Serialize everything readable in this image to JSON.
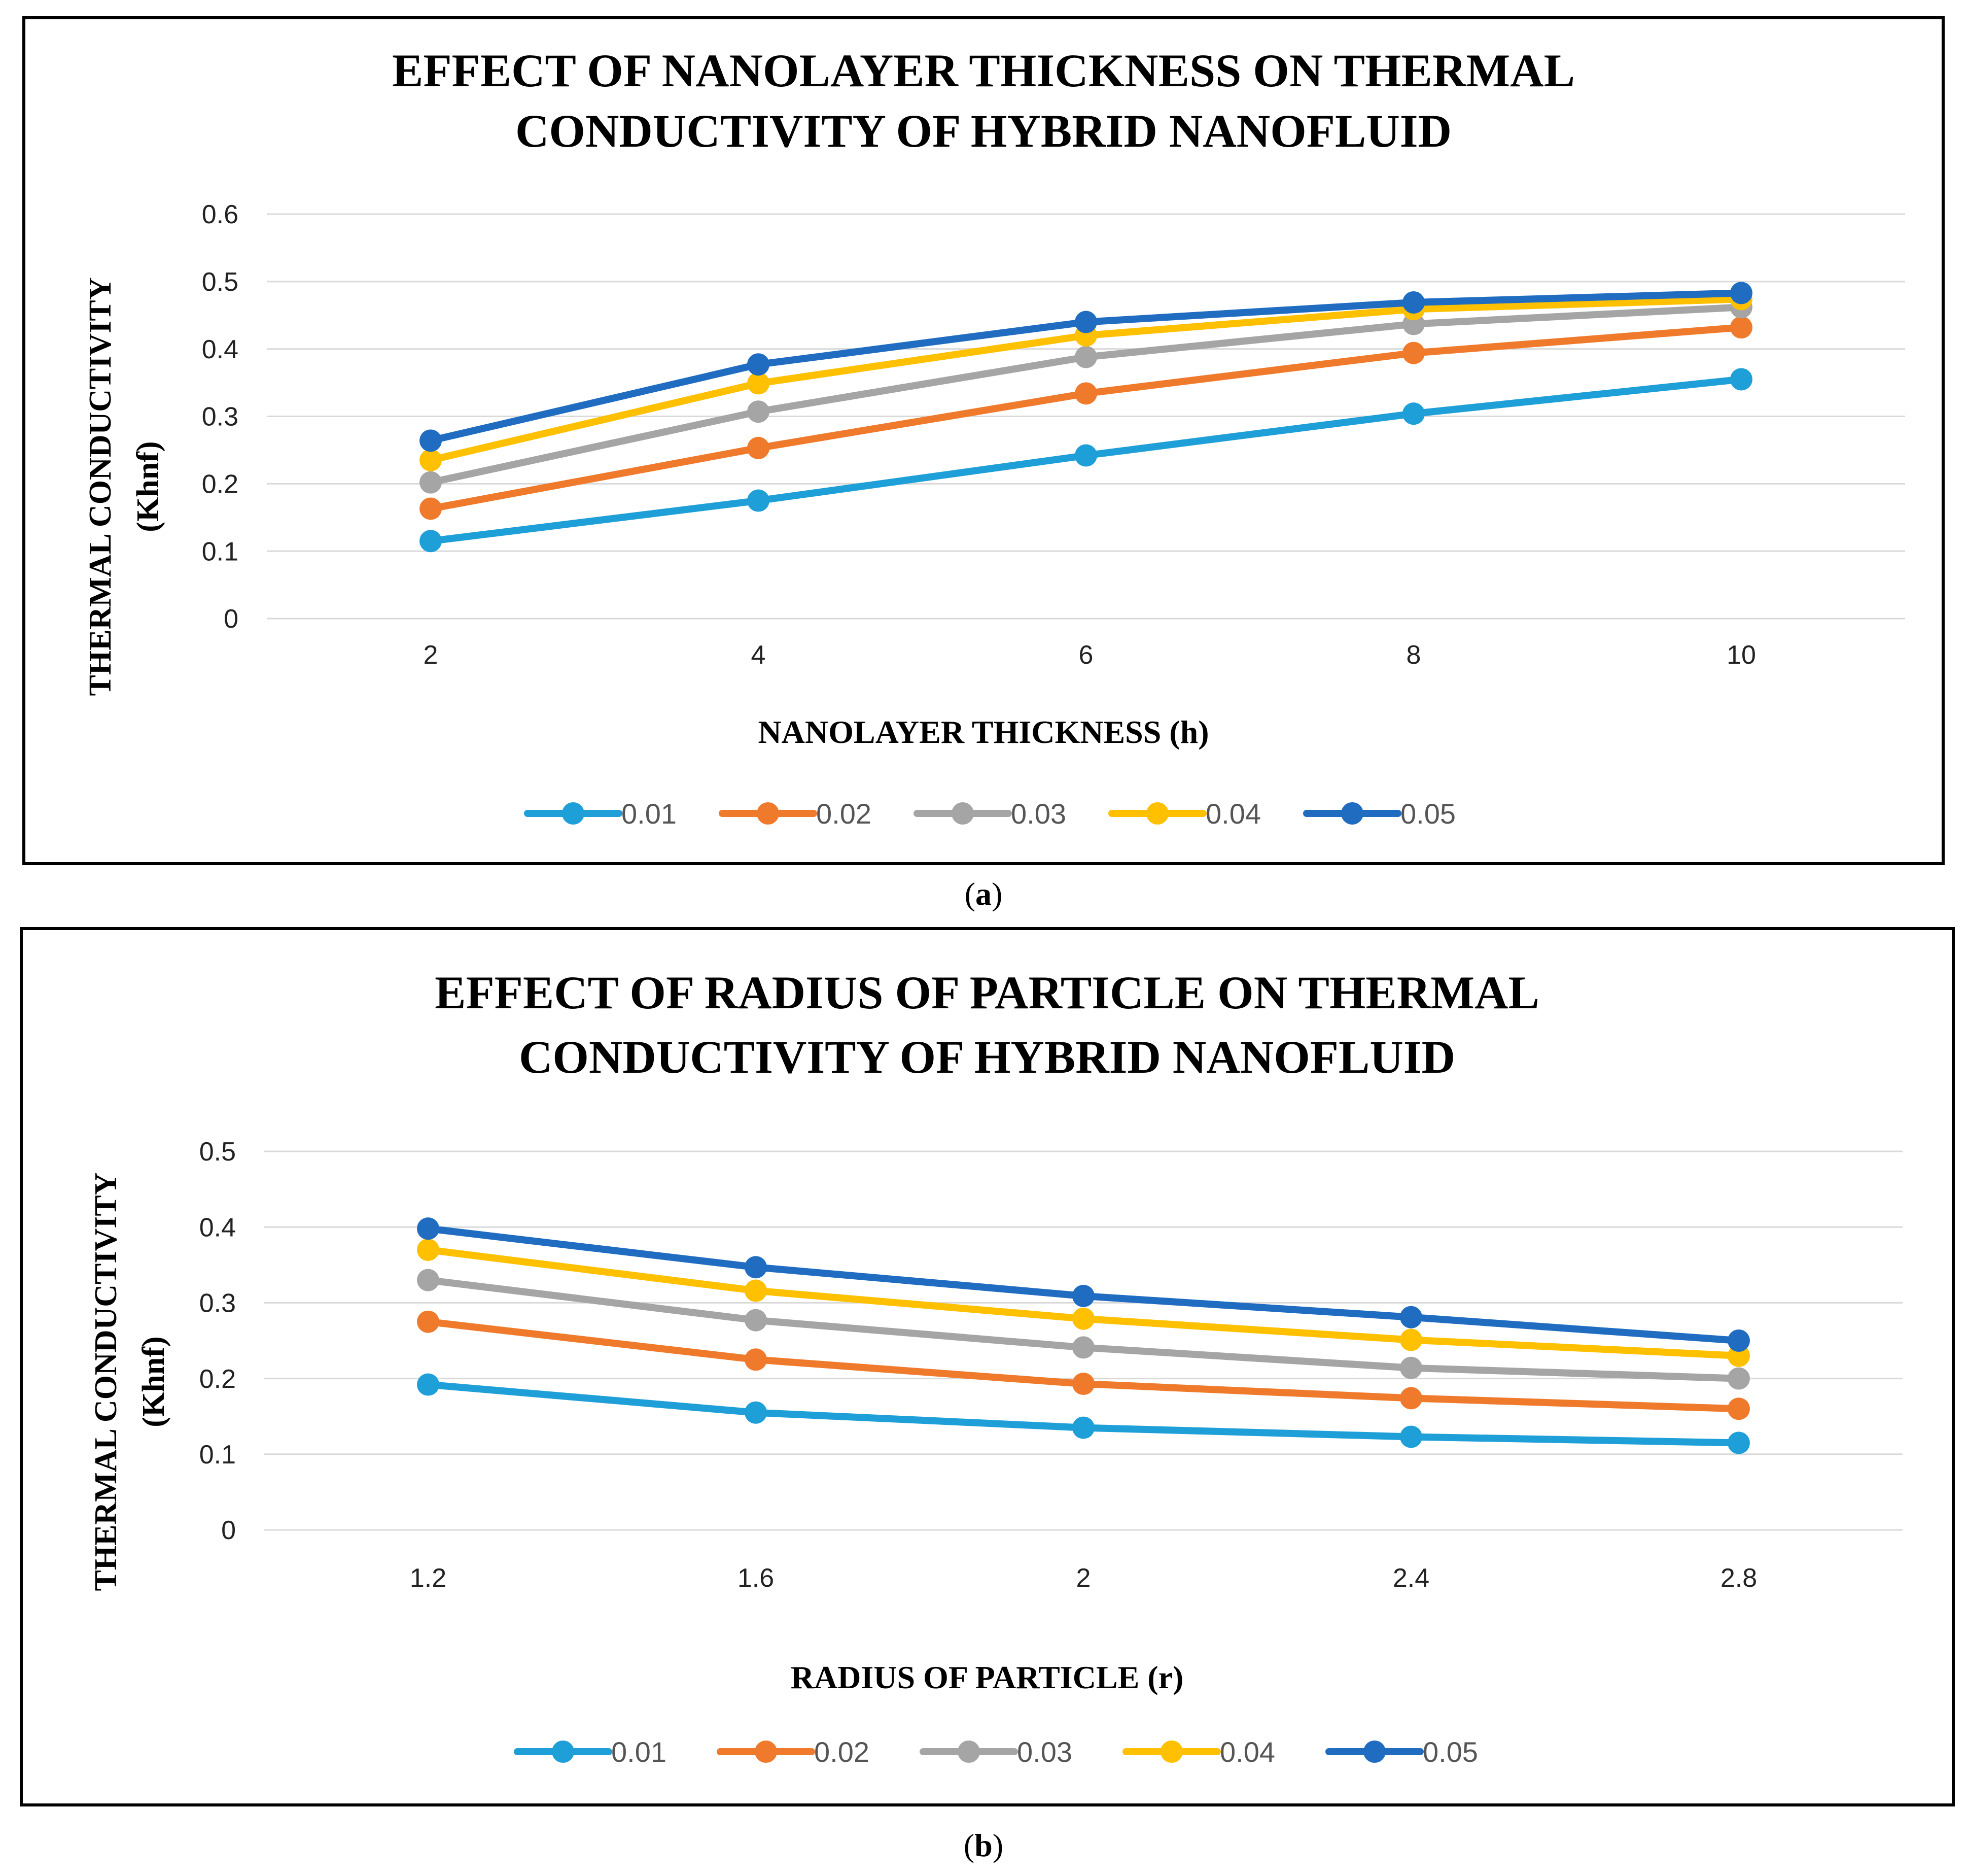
{
  "chart_data": [
    {
      "id": "a",
      "type": "line",
      "title": [
        "EFFECT OF NANOLAYER THICKNESS ON THERMAL",
        "CONDUCTIVITY  OF HYBRID NANOFLUID"
      ],
      "xlabel": "NANOLAYER THICKNESS (h)",
      "ylabel": [
        "THERMAL CONDUCTIVITY",
        "(Khnf)"
      ],
      "categories": [
        "2",
        "4",
        "6",
        "8",
        "10"
      ],
      "ylim": [
        0,
        0.6
      ],
      "yticks": [
        "0",
        "0.1",
        "0.2",
        "0.3",
        "0.4",
        "0.5",
        "0.6"
      ],
      "grid": true,
      "legend_position": "bottom",
      "series": [
        {
          "name": "0.01",
          "color": "#1F9FD8",
          "values": [
            0.115,
            0.175,
            0.242,
            0.304,
            0.355
          ]
        },
        {
          "name": "0.02",
          "color": "#F07A2C",
          "values": [
            0.163,
            0.253,
            0.334,
            0.394,
            0.432
          ]
        },
        {
          "name": "0.03",
          "color": "#A5A5A5",
          "values": [
            0.202,
            0.307,
            0.388,
            0.437,
            0.462
          ]
        },
        {
          "name": "0.04",
          "color": "#FFC000",
          "values": [
            0.235,
            0.349,
            0.42,
            0.459,
            0.474
          ]
        },
        {
          "name": "0.05",
          "color": "#1F6CC1",
          "values": [
            0.264,
            0.377,
            0.44,
            0.469,
            0.483
          ]
        }
      ]
    },
    {
      "id": "b",
      "type": "line",
      "title": [
        "EFFECT OF RADIUS OF PARTICLE  ON THERMAL",
        "CONDUCTIVITY  OF HYBRID NANOFLUID"
      ],
      "xlabel": "RADIUS OF PARTICLE (r)",
      "ylabel": [
        "THERMAL CONDUCTIVITY",
        "(Khnf)"
      ],
      "categories": [
        "1.2",
        "1.6",
        "2",
        "2.4",
        "2.8"
      ],
      "ylim": [
        0,
        0.5
      ],
      "yticks": [
        "0",
        "0.1",
        "0.2",
        "0.3",
        "0.4",
        "0.5"
      ],
      "grid": true,
      "legend_position": "bottom",
      "series": [
        {
          "name": "0.01",
          "color": "#1F9FD8",
          "values": [
            0.192,
            0.155,
            0.135,
            0.123,
            0.115
          ]
        },
        {
          "name": "0.02",
          "color": "#F07A2C",
          "values": [
            0.275,
            0.225,
            0.193,
            0.174,
            0.16
          ]
        },
        {
          "name": "0.03",
          "color": "#A5A5A5",
          "values": [
            0.33,
            0.277,
            0.241,
            0.214,
            0.2
          ]
        },
        {
          "name": "0.04",
          "color": "#FFC000",
          "values": [
            0.37,
            0.316,
            0.279,
            0.251,
            0.23
          ]
        },
        {
          "name": "0.05",
          "color": "#1F6CC1",
          "values": [
            0.398,
            0.347,
            0.309,
            0.281,
            0.25
          ]
        }
      ]
    }
  ],
  "captions": {
    "a": {
      "open": "(",
      "letter": "a",
      "close": ")"
    },
    "b": {
      "open": "(",
      "letter": "b",
      "close": ")"
    }
  }
}
